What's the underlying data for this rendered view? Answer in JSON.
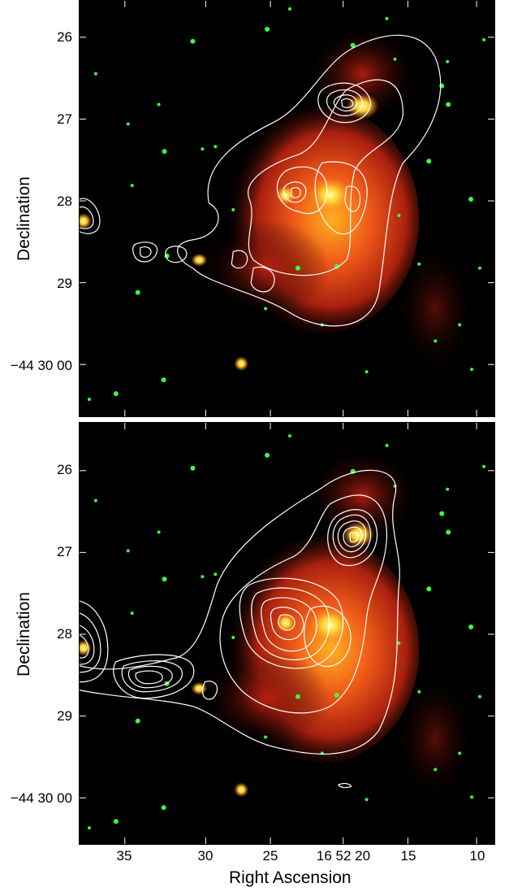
{
  "top_panel": {
    "y_axis_title": "Declination",
    "y_ticks": [
      "26",
      "27",
      "28",
      "29",
      "−44 30 00"
    ]
  },
  "bottom_panel": {
    "y_axis_title": "Declination",
    "y_ticks": [
      "26",
      "27",
      "28",
      "29",
      "−44 30 00"
    ],
    "x_axis_title": "Right Ascension",
    "x_ticks": [
      "35",
      "30",
      "25",
      "16 52 20",
      "15",
      "10"
    ]
  },
  "colors": {
    "background": "#000000",
    "nebula_red": "#c8281a",
    "nebula_orange": "#f07a1e",
    "stars_green": "#3cff3c",
    "contours": "#ffffff"
  }
}
